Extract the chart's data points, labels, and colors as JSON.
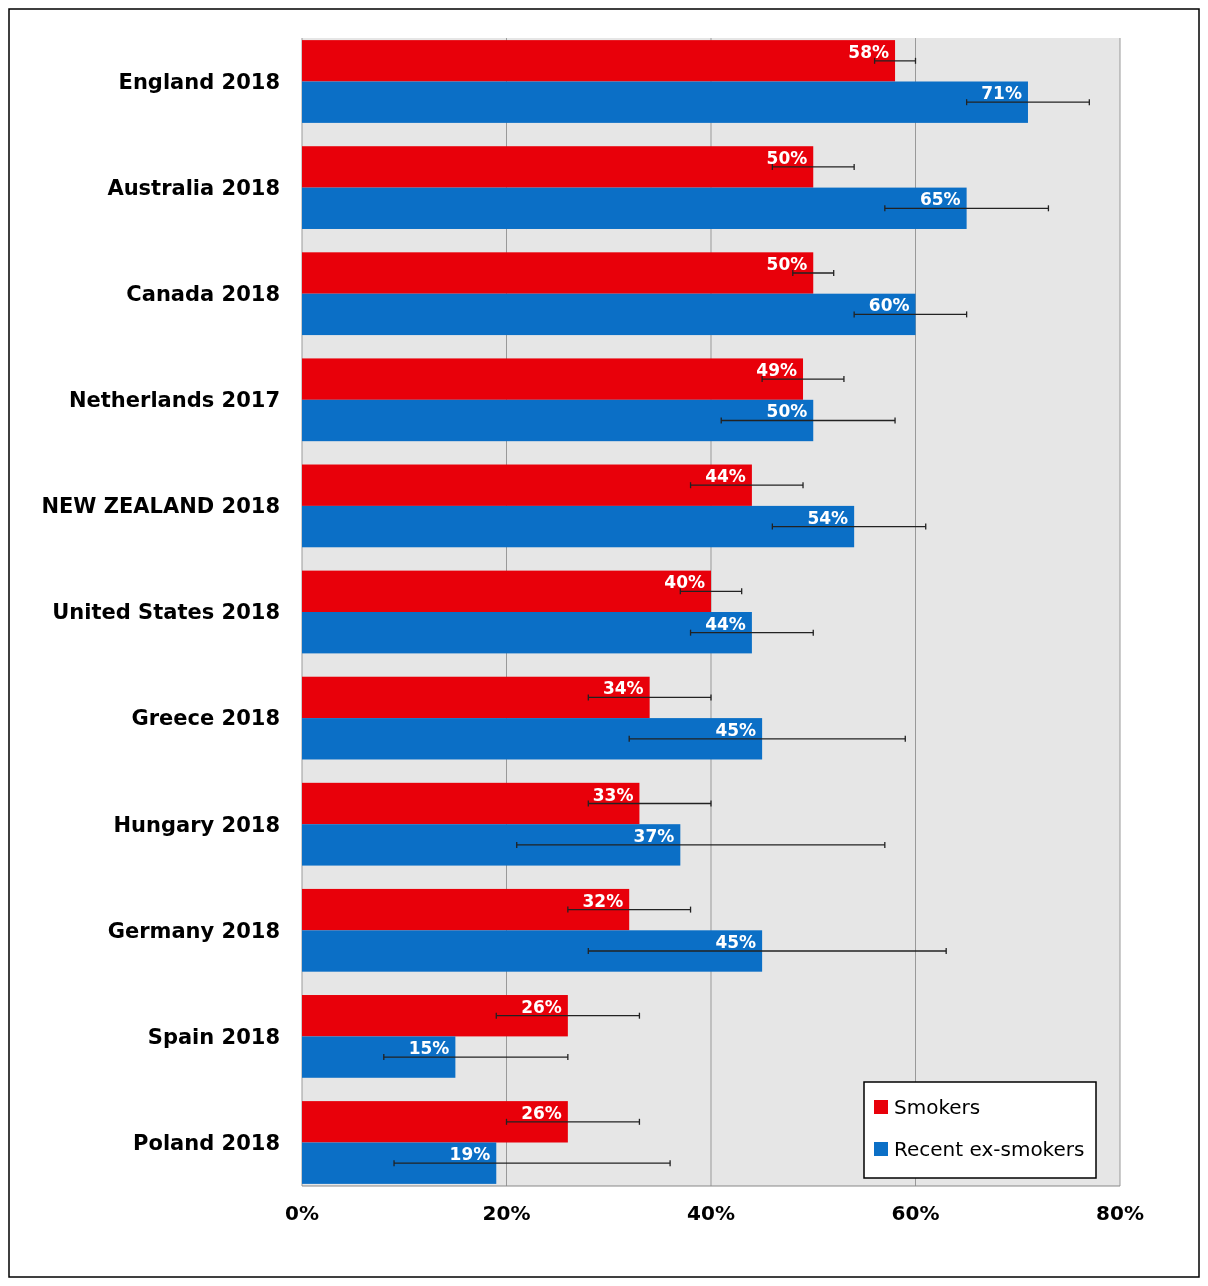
{
  "chart_data": {
    "type": "bar",
    "orientation": "horizontal",
    "categories": [
      "England 2018",
      "Australia 2018",
      "Canada 2018",
      "Netherlands 2017",
      "NEW ZEALAND 2018",
      "United States 2018",
      "Greece 2018",
      "Hungary 2018",
      "Germany 2018",
      "Spain 2018",
      "Poland 2018"
    ],
    "series": [
      {
        "name": "Smokers",
        "color": "#e8000a",
        "values": [
          58,
          50,
          50,
          49,
          44,
          40,
          34,
          33,
          32,
          26,
          26
        ],
        "value_labels": [
          "58%",
          "50%",
          "50%",
          "49%",
          "44%",
          "40%",
          "34%",
          "33%",
          "32%",
          "26%",
          "26%"
        ],
        "errors": [
          [
            56,
            60
          ],
          [
            46,
            54
          ],
          [
            48,
            52
          ],
          [
            45,
            53
          ],
          [
            38,
            49
          ],
          [
            37,
            43
          ],
          [
            28,
            40
          ],
          [
            28,
            40
          ],
          [
            26,
            38
          ],
          [
            19,
            33
          ],
          [
            20,
            33
          ]
        ]
      },
      {
        "name": "Recent ex-smokers",
        "color": "#0b6fc6",
        "values": [
          71,
          65,
          60,
          50,
          54,
          44,
          45,
          37,
          45,
          15,
          19
        ],
        "value_labels": [
          "71%",
          "65%",
          "60%",
          "50%",
          "54%",
          "44%",
          "45%",
          "37%",
          "45%",
          "15%",
          "19%"
        ],
        "errors": [
          [
            65,
            77
          ],
          [
            57,
            73
          ],
          [
            54,
            65
          ],
          [
            41,
            58
          ],
          [
            46,
            61
          ],
          [
            38,
            50
          ],
          [
            32,
            59
          ],
          [
            21,
            57
          ],
          [
            28,
            63
          ],
          [
            8,
            26
          ],
          [
            9,
            36
          ]
        ]
      }
    ],
    "xlim": [
      0,
      80
    ],
    "xticks": [
      {
        "value": 0,
        "label": "0%"
      },
      {
        "value": 20,
        "label": "20%"
      },
      {
        "value": 40,
        "label": "40%"
      },
      {
        "value": 60,
        "label": "60%"
      },
      {
        "value": 80,
        "label": "80%"
      }
    ],
    "grid": "x",
    "legend": "bottom right"
  }
}
